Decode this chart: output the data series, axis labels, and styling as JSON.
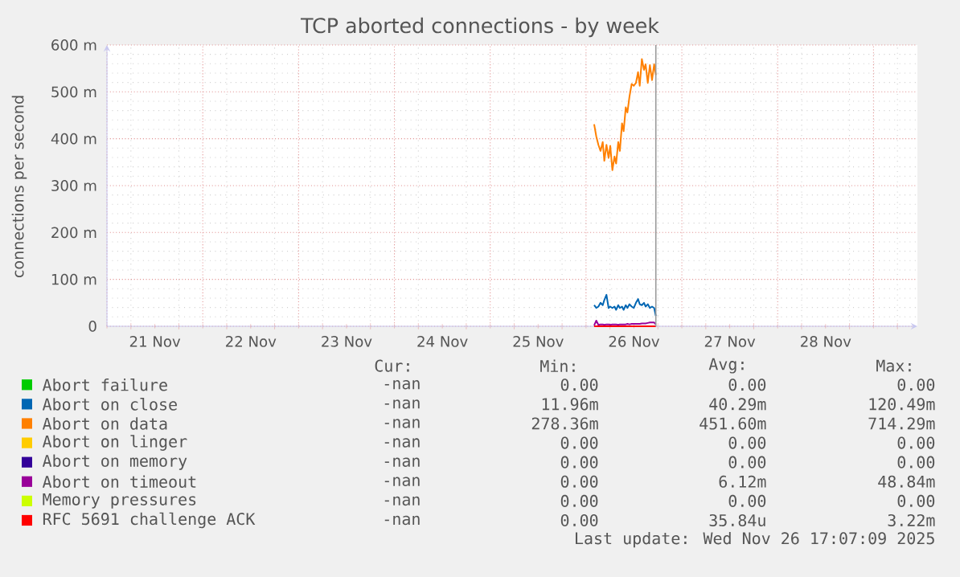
{
  "chart_data": {
    "type": "line",
    "title": "TCP aborted connections - by week",
    "ylabel": "connections per second",
    "xlim": [
      "2025-11-21T00:00",
      "2025-11-29T11:00"
    ],
    "xticks": [
      {
        "value": "2025-11-21T12:00",
        "label": "21 Nov"
      },
      {
        "value": "2025-11-22T12:00",
        "label": "22 Nov"
      },
      {
        "value": "2025-11-23T12:00",
        "label": "23 Nov"
      },
      {
        "value": "2025-11-24T12:00",
        "label": "24 Nov"
      },
      {
        "value": "2025-11-25T12:00",
        "label": "25 Nov"
      },
      {
        "value": "2025-11-26T12:00",
        "label": "26 Nov"
      },
      {
        "value": "2025-11-27T12:00",
        "label": "27 Nov"
      },
      {
        "value": "2025-11-28T12:00",
        "label": "28 Nov"
      },
      {
        "value": "2025-11-21T00:00",
        "label": null
      },
      {
        "value": "2025-11-22T00:00",
        "label": null
      },
      {
        "value": "2025-11-23T00:00",
        "label": null
      },
      {
        "value": "2025-11-24T00:00",
        "label": null
      },
      {
        "value": "2025-11-25T00:00",
        "label": null
      },
      {
        "value": "2025-11-26T00:00",
        "label": null
      },
      {
        "value": "2025-11-27T00:00",
        "label": null
      },
      {
        "value": "2025-11-28T00:00",
        "label": null
      },
      {
        "value": "2025-11-29T00:00",
        "label": null
      }
    ],
    "ylim": [
      0,
      600
    ],
    "yticks": [
      {
        "value": 0,
        "label": "0"
      },
      {
        "value": 100,
        "label": "100 m"
      },
      {
        "value": 200,
        "label": "200 m"
      },
      {
        "value": 300,
        "label": "300 m"
      },
      {
        "value": 400,
        "label": "400 m"
      },
      {
        "value": 500,
        "label": "500 m"
      },
      {
        "value": 600,
        "label": "600 m"
      }
    ],
    "grid": true,
    "legend": "bottom",
    "marker": "none",
    "line_style": "solid",
    "x": [
      "2025-11-26T02:02",
      "2025-11-26T02:34",
      "2025-11-26T03:06",
      "2025-11-26T03:38",
      "2025-11-26T04:11",
      "2025-11-26T04:35",
      "2025-11-26T05:07",
      "2025-11-26T05:39",
      "2025-11-26T06:04",
      "2025-11-26T06:36",
      "2025-11-26T07:08",
      "2025-11-26T07:32",
      "2025-11-26T08:04",
      "2025-11-26T08:28",
      "2025-11-26T09:01",
      "2025-11-26T09:25",
      "2025-11-26T09:57",
      "2025-11-26T10:22",
      "2025-11-26T10:53",
      "2025-11-26T11:26",
      "2025-11-26T11:58",
      "2025-11-26T12:30",
      "2025-11-26T13:02",
      "2025-11-26T13:27",
      "2025-11-26T13:59",
      "2025-11-26T14:31",
      "2025-11-26T14:55",
      "2025-11-26T15:28",
      "2025-11-26T16:00",
      "2025-11-26T16:32",
      "2025-11-26T17:04",
      "2025-11-26T17:29"
    ],
    "series": [
      {
        "name": "Abort failure",
        "color": "#00cc00",
        "values": [
          null,
          null,
          null,
          null,
          null,
          null,
          null,
          null,
          null,
          null,
          null,
          null,
          null,
          null,
          null,
          null,
          null,
          null,
          null,
          null,
          null,
          null,
          null,
          null,
          null,
          null,
          null,
          null,
          null,
          null,
          null,
          null
        ]
      },
      {
        "name": "Abort on close",
        "color": "#0066b3",
        "values": [
          45,
          39,
          42,
          50,
          45,
          56,
          67,
          39,
          42,
          39,
          42,
          35,
          45,
          39,
          42,
          35,
          45,
          39,
          47,
          42,
          39,
          50,
          58,
          47,
          45,
          50,
          42,
          47,
          39,
          42,
          39,
          22
        ]
      },
      {
        "name": "Abort on data",
        "color": "#ff8000",
        "values": [
          431,
          405,
          387,
          374,
          393,
          353,
          387,
          359,
          385,
          333,
          362,
          347,
          393,
          374,
          433,
          416,
          467,
          456,
          490,
          517,
          513,
          519,
          542,
          513,
          570,
          547,
          559,
          519,
          557,
          525,
          559,
          536
        ]
      },
      {
        "name": "Abort on linger",
        "color": "#ffcc00",
        "values": [
          null,
          null,
          null,
          null,
          null,
          null,
          null,
          null,
          null,
          null,
          null,
          null,
          null,
          null,
          null,
          null,
          null,
          null,
          null,
          null,
          null,
          null,
          null,
          null,
          null,
          null,
          null,
          null,
          null,
          null,
          null,
          null
        ]
      },
      {
        "name": "Abort on memory",
        "color": "#330099",
        "values": [
          null,
          null,
          null,
          null,
          null,
          null,
          null,
          null,
          null,
          null,
          null,
          null,
          null,
          null,
          null,
          null,
          null,
          null,
          null,
          null,
          null,
          null,
          null,
          null,
          null,
          null,
          null,
          null,
          null,
          null,
          null,
          null
        ]
      },
      {
        "name": "Abort on timeout",
        "color": "#990099",
        "values": [
          2,
          12,
          3,
          4,
          4,
          3,
          4,
          4,
          3,
          4,
          4,
          4,
          3,
          4,
          4,
          4,
          4,
          5,
          4,
          5,
          5,
          5,
          5,
          5,
          6,
          6,
          6,
          7,
          8,
          8,
          8,
          4
        ]
      },
      {
        "name": "Memory pressures",
        "color": "#ccff00",
        "values": [
          null,
          null,
          null,
          null,
          null,
          null,
          null,
          null,
          null,
          null,
          null,
          null,
          null,
          null,
          null,
          null,
          null,
          null,
          null,
          null,
          null,
          null,
          null,
          null,
          null,
          null,
          null,
          null,
          null,
          null,
          null,
          null
        ]
      },
      {
        "name": "RFC 5691 challenge ACK",
        "color": "#ff0000",
        "values": [
          0,
          0,
          0,
          0,
          0,
          0,
          0,
          0,
          0,
          0,
          0,
          0,
          0,
          0,
          0,
          0,
          0,
          0,
          0,
          0,
          0,
          0,
          0,
          0,
          0,
          0,
          0,
          0,
          0,
          0,
          0,
          0
        ]
      }
    ],
    "ref_lines": [
      {
        "axis": "x",
        "value": "2025-11-26T17:29",
        "color": "#999999"
      }
    ],
    "annotations": [
      "Cur:",
      "Min:",
      "Avg:",
      "Max:",
      "-nan",
      "0.00",
      "0.00",
      "0.00",
      "-nan",
      "11.96m",
      "40.29m",
      "120.49m",
      "-nan",
      "278.36m",
      "451.60m",
      "714.29m",
      "-nan",
      "0.00",
      "0.00",
      "0.00",
      "-nan",
      "0.00",
      "0.00",
      "0.00",
      "-nan",
      "0.00",
      "6.12m",
      "48.84m",
      "-nan",
      "0.00",
      "0.00",
      "0.00",
      "-nan",
      "0.00",
      "35.84u",
      "3.22m",
      "Last update: Wed Nov 26 17:07:09 2025"
    ]
  }
}
